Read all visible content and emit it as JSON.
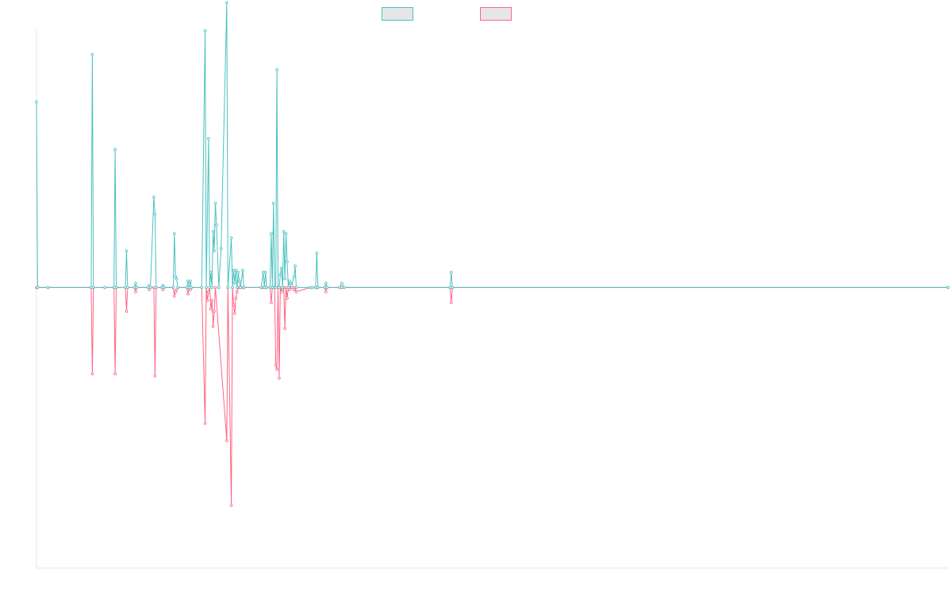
{
  "chart_data": {
    "type": "line",
    "title": "",
    "xlabel": "",
    "ylabel": "",
    "grid": false,
    "legend_position": "top-center",
    "x_range": [
      0,
      800
    ],
    "y_range": [
      -13,
      12
    ],
    "series": [
      {
        "legend_swatch_fill": "#e6e6e6",
        "color": "#4bc0c0",
        "points": [
          [
            0,
            8.6
          ],
          [
            1,
            0
          ],
          [
            10,
            0
          ],
          [
            48,
            0
          ],
          [
            49,
            10.8
          ],
          [
            50,
            0
          ],
          [
            60,
            0
          ],
          [
            68,
            0
          ],
          [
            69,
            6.4
          ],
          [
            70,
            0
          ],
          [
            78,
            0
          ],
          [
            79,
            1.7
          ],
          [
            80,
            0
          ],
          [
            86,
            0
          ],
          [
            87,
            0.2
          ],
          [
            88,
            0
          ],
          [
            98,
            0
          ],
          [
            99,
            0.1
          ],
          [
            100,
            0
          ],
          [
            103,
            4.2
          ],
          [
            104,
            3.4
          ],
          [
            105,
            0
          ],
          [
            110,
            0
          ],
          [
            111,
            0.1
          ],
          [
            112,
            0
          ],
          [
            120,
            0
          ],
          [
            121,
            2.5
          ],
          [
            122,
            0.5
          ],
          [
            123,
            0.4
          ],
          [
            124,
            0
          ],
          [
            132,
            0
          ],
          [
            133,
            0.3
          ],
          [
            134,
            0
          ],
          [
            135,
            0.3
          ],
          [
            136,
            0
          ],
          [
            145,
            0
          ],
          [
            148,
            11.9
          ],
          [
            149,
            0
          ],
          [
            151,
            6.9
          ],
          [
            152,
            0
          ],
          [
            153,
            0.7
          ],
          [
            154,
            0
          ],
          [
            155,
            2.6
          ],
          [
            156,
            1.7
          ],
          [
            157,
            3.9
          ],
          [
            158,
            2.9
          ],
          [
            160,
            0
          ],
          [
            162,
            1.8
          ],
          [
            167,
            13.2
          ],
          [
            168,
            0
          ],
          [
            171,
            2.3
          ],
          [
            172,
            0
          ],
          [
            173,
            0.8
          ],
          [
            174,
            0.2
          ],
          [
            175,
            0.8
          ],
          [
            176,
            0
          ],
          [
            177,
            0.7
          ],
          [
            178,
            0.3
          ],
          [
            179,
            0
          ],
          [
            181,
            0.8
          ],
          [
            182,
            0
          ],
          [
            197,
            0
          ],
          [
            199,
            0.7
          ],
          [
            200,
            0
          ],
          [
            201,
            0.7
          ],
          [
            202,
            0
          ],
          [
            205,
            0
          ],
          [
            206,
            2.5
          ],
          [
            207,
            0
          ],
          [
            208,
            3.9
          ],
          [
            209,
            0
          ],
          [
            210,
            0
          ],
          [
            211,
            10.1
          ],
          [
            212,
            0
          ],
          [
            213,
            0
          ],
          [
            214,
            0.6
          ],
          [
            215,
            0.9
          ],
          [
            216,
            0
          ],
          [
            217,
            2.6
          ],
          [
            218,
            0.4
          ],
          [
            219,
            2.5
          ],
          [
            220,
            1.2
          ],
          [
            221,
            0
          ],
          [
            222,
            0.3
          ],
          [
            223,
            0.2
          ],
          [
            224,
            0.1
          ],
          [
            226,
            0.5
          ],
          [
            227,
            1
          ],
          [
            228,
            0
          ],
          [
            240,
            0
          ],
          [
            242,
            0
          ],
          [
            245,
            0
          ],
          [
            246,
            1.6
          ],
          [
            247,
            0
          ],
          [
            253,
            0
          ],
          [
            254,
            0.2
          ],
          [
            255,
            0
          ],
          [
            266,
            0
          ],
          [
            268,
            0.2
          ],
          [
            270,
            0
          ],
          [
            363,
            0
          ],
          [
            364,
            0.7
          ],
          [
            365,
            0
          ],
          [
            800,
            0
          ]
        ]
      },
      {
        "legend_swatch_fill": "#e6e6e6",
        "color": "#ff6384",
        "points": [
          [
            0,
            0
          ],
          [
            1,
            0
          ],
          [
            10,
            0
          ],
          [
            48,
            0
          ],
          [
            49,
            -4
          ],
          [
            50,
            0
          ],
          [
            60,
            0
          ],
          [
            68,
            0
          ],
          [
            69,
            -4
          ],
          [
            70,
            0
          ],
          [
            78,
            0
          ],
          [
            79,
            -1.1
          ],
          [
            80,
            0
          ],
          [
            86,
            0
          ],
          [
            87,
            -0.2
          ],
          [
            88,
            0
          ],
          [
            98,
            0
          ],
          [
            99,
            -0.1
          ],
          [
            100,
            0
          ],
          [
            103,
            0
          ],
          [
            104,
            -4.1
          ],
          [
            105,
            0
          ],
          [
            110,
            0
          ],
          [
            111,
            -0.1
          ],
          [
            112,
            0
          ],
          [
            120,
            0
          ],
          [
            121,
            -0.4
          ],
          [
            122,
            -0.2
          ],
          [
            123,
            -0.1
          ],
          [
            124,
            0
          ],
          [
            132,
            0
          ],
          [
            133,
            -0.3
          ],
          [
            134,
            0
          ],
          [
            135,
            -0.1
          ],
          [
            136,
            0
          ],
          [
            145,
            0
          ],
          [
            148,
            -6.3
          ],
          [
            149,
            0
          ],
          [
            150,
            -0.6
          ],
          [
            151,
            -0.2
          ],
          [
            152,
            0
          ],
          [
            153,
            -1
          ],
          [
            154,
            -0.6
          ],
          [
            155,
            -1.8
          ],
          [
            156,
            -1.1
          ],
          [
            157,
            0
          ],
          [
            167,
            -7.1
          ],
          [
            168,
            0
          ],
          [
            171,
            -10.1
          ],
          [
            172,
            0
          ],
          [
            173,
            -0.8
          ],
          [
            174,
            -1.2
          ],
          [
            175,
            -0.5
          ],
          [
            176,
            -0.2
          ],
          [
            177,
            0
          ],
          [
            178,
            0
          ],
          [
            179,
            0
          ],
          [
            181,
            0
          ],
          [
            182,
            0
          ],
          [
            197,
            0
          ],
          [
            199,
            0
          ],
          [
            200,
            0
          ],
          [
            201,
            0
          ],
          [
            202,
            0
          ],
          [
            205,
            0
          ],
          [
            206,
            -0.7
          ],
          [
            207,
            0
          ],
          [
            208,
            0
          ],
          [
            209,
            0
          ],
          [
            210,
            -3.6
          ],
          [
            211,
            -3.8
          ],
          [
            212,
            0
          ],
          [
            213,
            -4.2
          ],
          [
            214,
            0
          ],
          [
            215,
            -0.2
          ],
          [
            216,
            -0.1
          ],
          [
            217,
            0
          ],
          [
            218,
            -1.9
          ],
          [
            219,
            0
          ],
          [
            220,
            -0.5
          ],
          [
            221,
            0
          ],
          [
            222,
            -0.1
          ],
          [
            223,
            0
          ],
          [
            224,
            0
          ],
          [
            226,
            -0.1
          ],
          [
            227,
            0
          ],
          [
            228,
            -0.2
          ],
          [
            240,
            0
          ],
          [
            242,
            0
          ],
          [
            245,
            0
          ],
          [
            246,
            0
          ],
          [
            247,
            0
          ],
          [
            253,
            0
          ],
          [
            254,
            -0.2
          ],
          [
            255,
            0
          ],
          [
            266,
            0
          ],
          [
            268,
            0
          ],
          [
            270,
            0
          ],
          [
            363,
            0
          ],
          [
            364,
            -0.7
          ],
          [
            365,
            0
          ],
          [
            800,
            0
          ]
        ]
      }
    ]
  }
}
